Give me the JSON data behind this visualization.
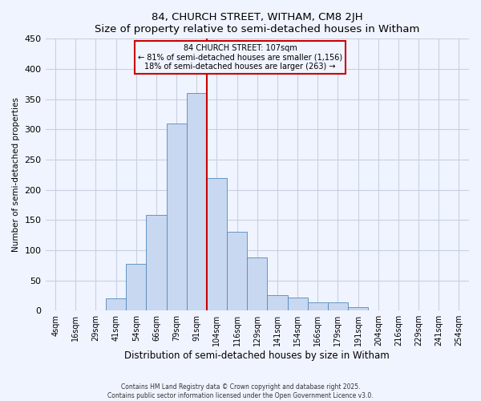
{
  "title": "84, CHURCH STREET, WITHAM, CM8 2JH",
  "subtitle": "Size of property relative to semi-detached houses in Witham",
  "xlabel": "Distribution of semi-detached houses by size in Witham",
  "ylabel": "Number of semi-detached properties",
  "bin_labels": [
    "4sqm",
    "16sqm",
    "29sqm",
    "41sqm",
    "54sqm",
    "66sqm",
    "79sqm",
    "91sqm",
    "104sqm",
    "116sqm",
    "129sqm",
    "141sqm",
    "154sqm",
    "166sqm",
    "179sqm",
    "191sqm",
    "204sqm",
    "216sqm",
    "229sqm",
    "241sqm",
    "254sqm"
  ],
  "bar_values": [
    0,
    0,
    0,
    20,
    77,
    158,
    310,
    360,
    219,
    130,
    88,
    26,
    21,
    14,
    13,
    6,
    0,
    0,
    0,
    0,
    0
  ],
  "bar_color": "#c8d8f0",
  "bar_edge_color": "#5588bb",
  "marker_bin_index": 8,
  "marker_label": "84 CHURCH STREET: 107sqm",
  "marker_line_color": "#cc0000",
  "annotation_line1": "← 81% of semi-detached houses are smaller (1,156)",
  "annotation_line2": "18% of semi-detached houses are larger (263) →",
  "annotation_box_color": "#cc0000",
  "ylim": [
    0,
    450
  ],
  "yticks": [
    0,
    50,
    100,
    150,
    200,
    250,
    300,
    350,
    400,
    450
  ],
  "footer_line1": "Contains HM Land Registry data © Crown copyright and database right 2025.",
  "footer_line2": "Contains public sector information licensed under the Open Government Licence v3.0.",
  "bg_color": "#f0f4ff",
  "grid_color": "#c8d0e0"
}
